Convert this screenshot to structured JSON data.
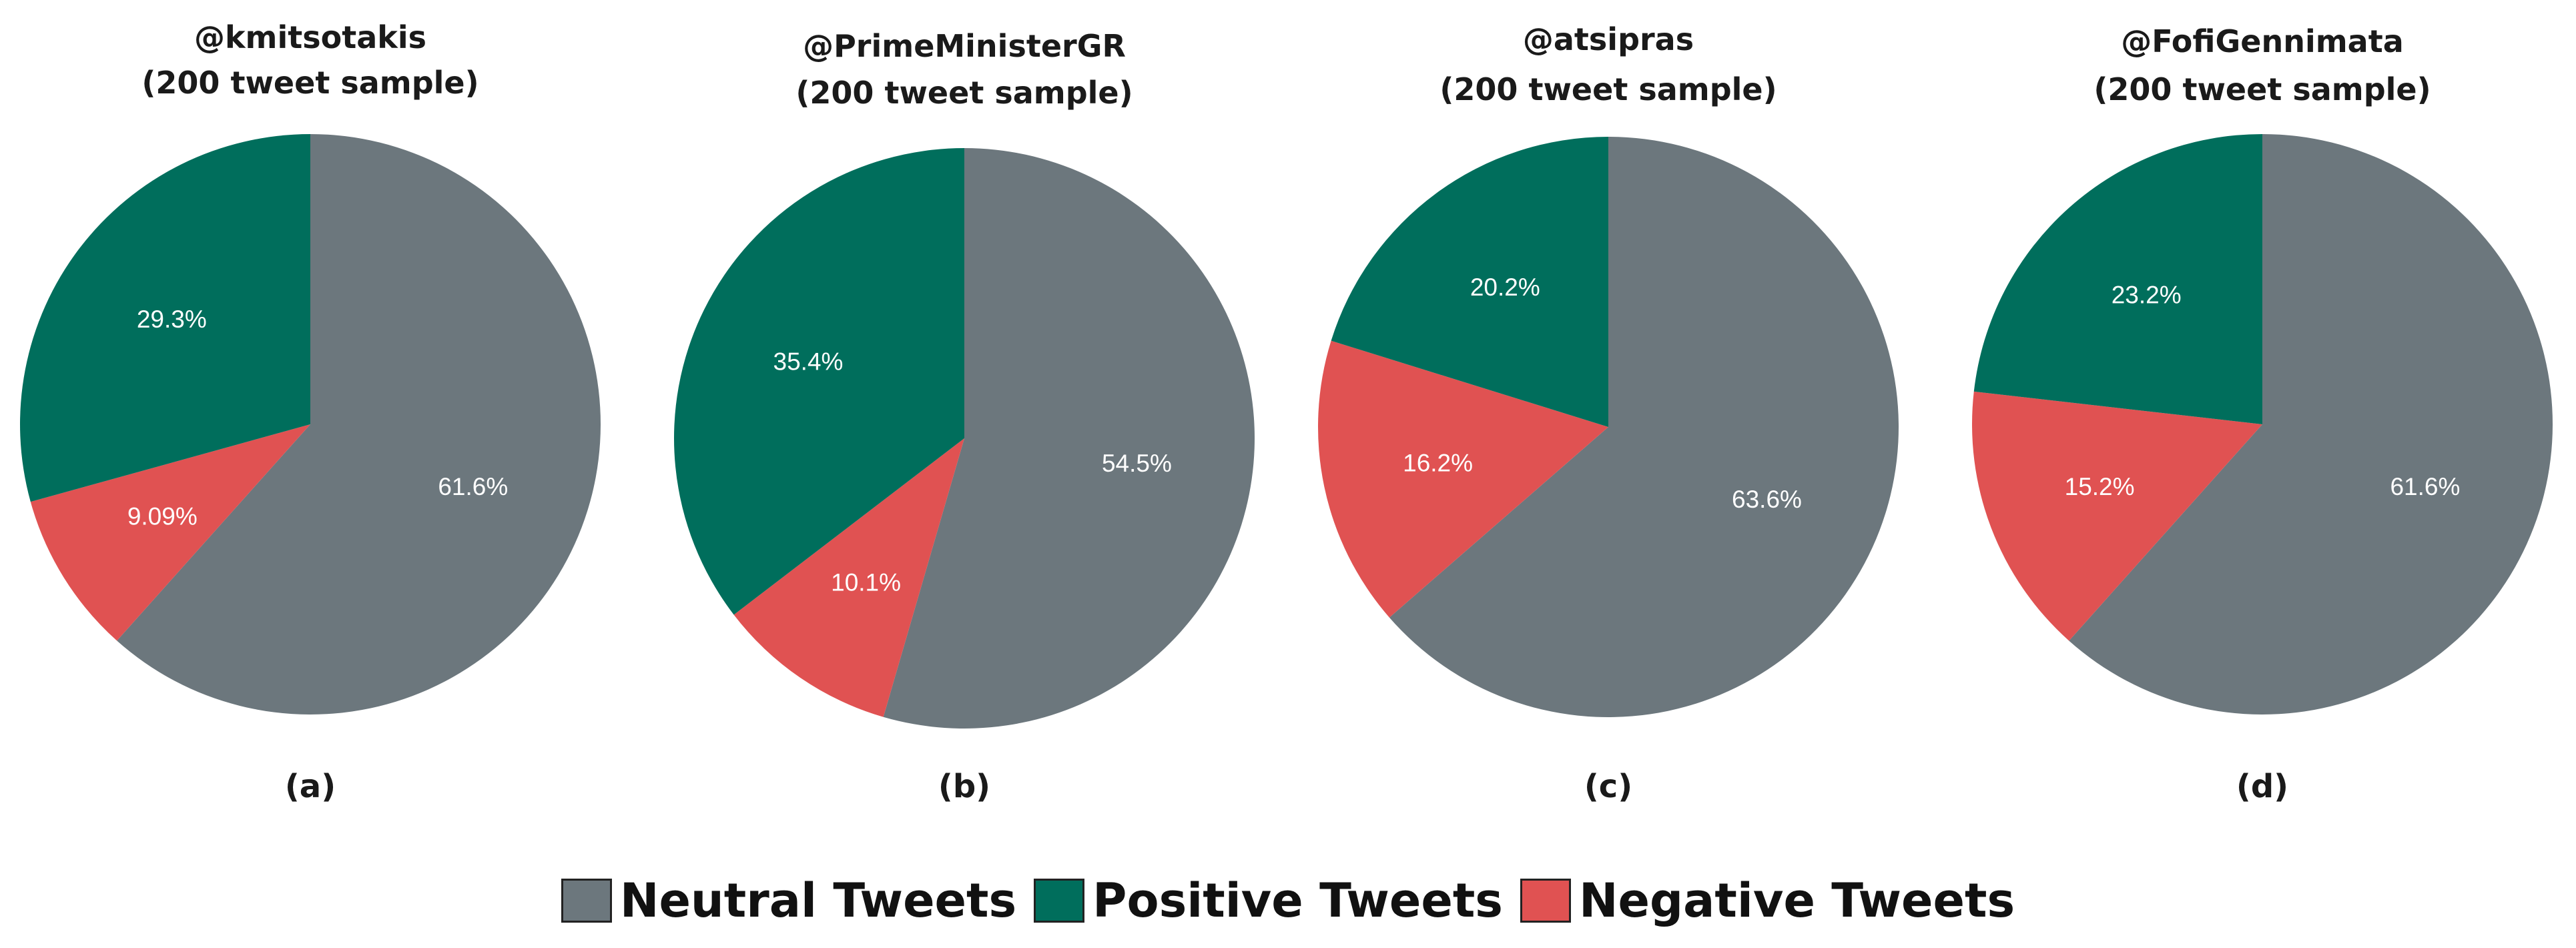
{
  "colors": {
    "neutral": "#6c777d",
    "positive": "#006e5c",
    "negative": "#e05252"
  },
  "legend": {
    "neutral_label": "Neutral Tweets",
    "positive_label": "Positive Tweets",
    "negative_label": "Negative Tweets"
  },
  "chart_data": [
    {
      "type": "pie",
      "title": "@kmitsotakis",
      "subtitle": "(200 tweet sample)",
      "caption": "(a)",
      "categories": [
        "Neutral Tweets",
        "Negative Tweets",
        "Positive Tweets"
      ],
      "values": [
        61.6,
        9.09,
        29.3
      ],
      "labels": [
        "61.6%",
        "9.09%",
        "29.3%"
      ],
      "start_angle": "12 o'clock",
      "direction": "clockwise"
    },
    {
      "type": "pie",
      "title": "@PrimeMinisterGR",
      "subtitle": "(200 tweet sample)",
      "caption": "(b)",
      "categories": [
        "Neutral Tweets",
        "Negative Tweets",
        "Positive Tweets"
      ],
      "values": [
        54.5,
        10.1,
        35.4
      ],
      "labels": [
        "54.5%",
        "10.1%",
        "35.4%"
      ],
      "start_angle": "12 o'clock",
      "direction": "clockwise"
    },
    {
      "type": "pie",
      "title": "@atsipras",
      "subtitle": "(200 tweet sample)",
      "caption": "(c)",
      "categories": [
        "Neutral Tweets",
        "Negative Tweets",
        "Positive Tweets"
      ],
      "values": [
        63.6,
        16.2,
        20.2
      ],
      "labels": [
        "63.6%",
        "16.2%",
        "20.2%"
      ],
      "start_angle": "12 o'clock",
      "direction": "clockwise"
    },
    {
      "type": "pie",
      "title": "@FofiGennimata",
      "subtitle": "(200 tweet sample)",
      "caption": "(d)",
      "categories": [
        "Neutral Tweets",
        "Negative Tweets",
        "Positive Tweets"
      ],
      "values": [
        61.6,
        15.2,
        23.2
      ],
      "labels": [
        "61.6%",
        "15.2%",
        "23.2%"
      ],
      "start_angle": "12 o'clock",
      "direction": "clockwise"
    }
  ]
}
